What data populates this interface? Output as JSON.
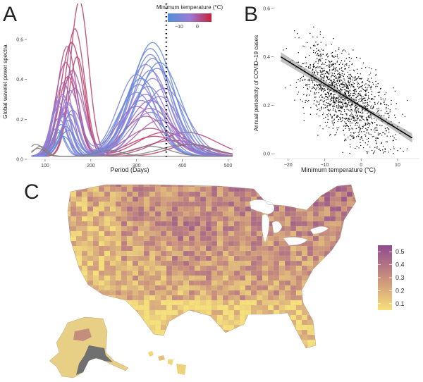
{
  "colors": {
    "temp_cold": "#4f8fd8",
    "temp_mid": "#9a7bd8",
    "temp_warm": "#c8203a",
    "na_line": "#808080",
    "regression_line": "#000000",
    "ci_band": "#8c8c8c",
    "map_low": "#f6e07a",
    "map_high": "#8e4a8e",
    "map_na": "#707070"
  },
  "panelA": {
    "label": "A",
    "xlabel": "Period (Days)",
    "ylabel": "Global wavelet power spectra",
    "xticks": [
      "100",
      "200",
      "300",
      "400",
      "500"
    ],
    "yticks": [
      "0.0",
      "0.2",
      "0.4",
      "0.6"
    ],
    "legend_title": "Minimum temperature (°C)",
    "legend_ticks": [
      "−10",
      "0"
    ]
  },
  "panelB": {
    "label": "B",
    "xlabel": "Minimum temperature (°C)",
    "ylabel": "Annual periodicity of COVID−19 cases",
    "xticks": [
      "−20",
      "−10",
      "0",
      "10"
    ],
    "yticks": [
      "0.0",
      "0.2",
      "0.4",
      "0.6"
    ]
  },
  "panelC": {
    "label": "C",
    "legend_ticks": [
      "0.5",
      "0.4",
      "0.3",
      "0.2",
      "0.1"
    ]
  },
  "chart_data": [
    {
      "type": "line",
      "panel": "A",
      "xlabel": "Period (Days)",
      "ylabel": "Global wavelet power spectra",
      "xlim": [
        60,
        510
      ],
      "ylim": [
        0,
        0.78
      ],
      "x_ticks": [
        100,
        200,
        300,
        400,
        500
      ],
      "y_ticks": [
        0,
        0.2,
        0.4,
        0.6
      ],
      "vline_x": 365,
      "legend": {
        "title": "Minimum temperature (°C)",
        "range": [
          -15,
          5
        ],
        "ticks": [
          -10,
          0
        ],
        "position": "top-right"
      },
      "series": [
        {
          "temp": 2,
          "values": [
            {
              "p1": 0.78,
              "c1": 175,
              "w1": 28,
              "p2": 0.12,
              "c2": 360,
              "w2": 80
            }
          ]
        },
        {
          "temp": 1,
          "values": [
            {
              "p1": 0.64,
              "c1": 165,
              "w1": 30,
              "p2": 0.08,
              "c2": 380,
              "w2": 90
            }
          ]
        },
        {
          "temp": 3,
          "values": [
            {
              "p1": 0.57,
              "c1": 158,
              "w1": 34,
              "p2": 0.1,
              "c2": 340,
              "w2": 80
            }
          ]
        },
        {
          "temp": 0,
          "values": [
            {
              "p1": 0.55,
              "c1": 148,
              "w1": 30,
              "p2": 0.14,
              "c2": 330,
              "w2": 75
            }
          ]
        },
        {
          "temp": 2,
          "values": [
            {
              "p1": 0.5,
              "c1": 170,
              "w1": 26,
              "p2": 0.06,
              "c2": 420,
              "w2": 70
            }
          ]
        },
        {
          "temp": -1,
          "values": [
            {
              "p1": 0.47,
              "c1": 145,
              "w1": 32,
              "p2": 0.2,
              "c2": 320,
              "w2": 70
            }
          ]
        },
        {
          "temp": -2,
          "values": [
            {
              "p1": 0.43,
              "c1": 160,
              "w1": 34,
              "p2": 0.24,
              "c2": 330,
              "w2": 70
            }
          ]
        },
        {
          "temp": 1,
          "values": [
            {
              "p1": 0.4,
              "c1": 150,
              "w1": 30,
              "p2": 0.12,
              "c2": 410,
              "w2": 90
            }
          ]
        },
        {
          "temp": -3,
          "values": [
            {
              "p1": 0.37,
              "c1": 140,
              "w1": 28,
              "p2": 0.28,
              "c2": 330,
              "w2": 65
            }
          ]
        },
        {
          "temp": -4,
          "values": [
            {
              "p1": 0.33,
              "c1": 155,
              "w1": 30,
              "p2": 0.31,
              "c2": 320,
              "w2": 65
            }
          ]
        },
        {
          "temp": -5,
          "values": [
            {
              "p1": 0.3,
              "c1": 135,
              "w1": 26,
              "p2": 0.35,
              "c2": 325,
              "w2": 60
            }
          ]
        },
        {
          "temp": -6,
          "values": [
            {
              "p1": 0.27,
              "c1": 150,
              "w1": 30,
              "p2": 0.39,
              "c2": 335,
              "w2": 60
            }
          ]
        },
        {
          "temp": -7,
          "values": [
            {
              "p1": 0.25,
              "c1": 130,
              "w1": 26,
              "p2": 0.43,
              "c2": 330,
              "w2": 60
            }
          ]
        },
        {
          "temp": -8,
          "values": [
            {
              "p1": 0.22,
              "c1": 145,
              "w1": 28,
              "p2": 0.46,
              "c2": 320,
              "w2": 62
            }
          ]
        },
        {
          "temp": -9,
          "values": [
            {
              "p1": 0.2,
              "c1": 140,
              "w1": 24,
              "p2": 0.49,
              "c2": 335,
              "w2": 62
            }
          ]
        },
        {
          "temp": -10,
          "values": [
            {
              "p1": 0.18,
              "c1": 150,
              "w1": 28,
              "p2": 0.51,
              "c2": 330,
              "w2": 60
            }
          ]
        },
        {
          "temp": -11,
          "values": [
            {
              "p1": 0.16,
              "c1": 135,
              "w1": 24,
              "p2": 0.54,
              "c2": 330,
              "w2": 62
            }
          ]
        },
        {
          "temp": -12,
          "values": [
            {
              "p1": 0.15,
              "c1": 145,
              "w1": 26,
              "p2": 0.57,
              "c2": 335,
              "w2": 64
            }
          ]
        },
        {
          "temp": -9,
          "values": [
            {
              "p1": 0.23,
              "c1": 160,
              "w1": 30,
              "p2": 0.41,
              "c2": 300,
              "w2": 58
            }
          ]
        },
        {
          "temp": -6,
          "values": [
            {
              "p1": 0.28,
              "c1": 128,
              "w1": 22,
              "p2": 0.34,
              "c2": 360,
              "w2": 70
            }
          ]
        },
        {
          "temp": -3,
          "values": [
            {
              "p1": 0.34,
              "c1": 165,
              "w1": 30,
              "p2": 0.25,
              "c2": 300,
              "w2": 62
            }
          ]
        },
        {
          "temp": -13,
          "values": [
            {
              "p1": 0.12,
              "c1": 130,
              "w1": 22,
              "p2": 0.47,
              "c2": 350,
              "w2": 66
            }
          ]
        },
        {
          "temp": -11,
          "values": [
            {
              "p1": 0.21,
              "c1": 155,
              "w1": 26,
              "p2": 0.44,
              "c2": 345,
              "w2": 66
            }
          ]
        },
        {
          "temp": -7,
          "values": [
            {
              "p1": 0.31,
              "c1": 138,
              "w1": 24,
              "p2": 0.3,
              "c2": 350,
              "w2": 64
            }
          ]
        },
        {
          "temp": -2,
          "values": [
            {
              "p1": 0.41,
              "c1": 155,
              "w1": 28,
              "p2": 0.18,
              "c2": 350,
              "w2": 70
            }
          ]
        },
        {
          "temp": -14,
          "values": [
            {
              "p1": 0.1,
              "c1": 140,
              "w1": 24,
              "p2": 0.39,
              "c2": 310,
              "w2": 60
            }
          ]
        },
        {
          "temp": -10,
          "values": [
            {
              "p1": 0.14,
              "c1": 125,
              "w1": 22,
              "p2": 0.36,
              "c2": 305,
              "w2": 58
            }
          ]
        },
        {
          "temp": -5,
          "values": [
            {
              "p1": 0.26,
              "c1": 150,
              "w1": 28,
              "p2": 0.22,
              "c2": 330,
              "w2": 64
            }
          ]
        },
        {
          "temp": -8,
          "values": [
            {
              "p1": 0.19,
              "c1": 130,
              "w1": 24,
              "p2": 0.28,
              "c2": 310,
              "w2": 60
            }
          ]
        },
        {
          "temp": -12,
          "values": [
            {
              "p1": 0.13,
              "c1": 150,
              "w1": 26,
              "p2": 0.32,
              "c2": 300,
              "w2": 60
            }
          ]
        },
        {
          "temp": null,
          "values": [
            {
              "p1": 0.06,
              "c1": 80,
              "w1": 22,
              "p2": 0.05,
              "c2": 330,
              "w2": 60
            }
          ]
        },
        {
          "temp": null,
          "values": [
            {
              "p1": 0.05,
              "c1": 90,
              "w1": 20,
              "p2": 0.03,
              "c2": 240,
              "w2": 40
            }
          ]
        },
        {
          "temp": null,
          "values": [
            {
              "p1": 0.04,
              "c1": 85,
              "w1": 20,
              "p2": 0.06,
              "c2": 410,
              "w2": 80
            }
          ]
        }
      ]
    },
    {
      "type": "scatter",
      "panel": "B",
      "xlabel": "Minimum temperature (°C)",
      "ylabel": "Annual periodicity of COVID−19 cases",
      "xlim": [
        -24,
        16
      ],
      "ylim": [
        -0.02,
        0.62
      ],
      "x_ticks": [
        -20,
        -10,
        0,
        10
      ],
      "y_ticks": [
        0,
        0.2,
        0.4,
        0.6
      ],
      "point_count": 1500,
      "regression": {
        "x": [
          -22,
          14
        ],
        "y": [
          0.4,
          0.065
        ],
        "ci": 0.012
      }
    },
    {
      "type": "heatmap",
      "panel": "C",
      "legend": {
        "range": [
          0.05,
          0.55
        ],
        "ticks": [
          0.5,
          0.4,
          0.3,
          0.2,
          0.1
        ],
        "position": "right"
      }
    }
  ]
}
